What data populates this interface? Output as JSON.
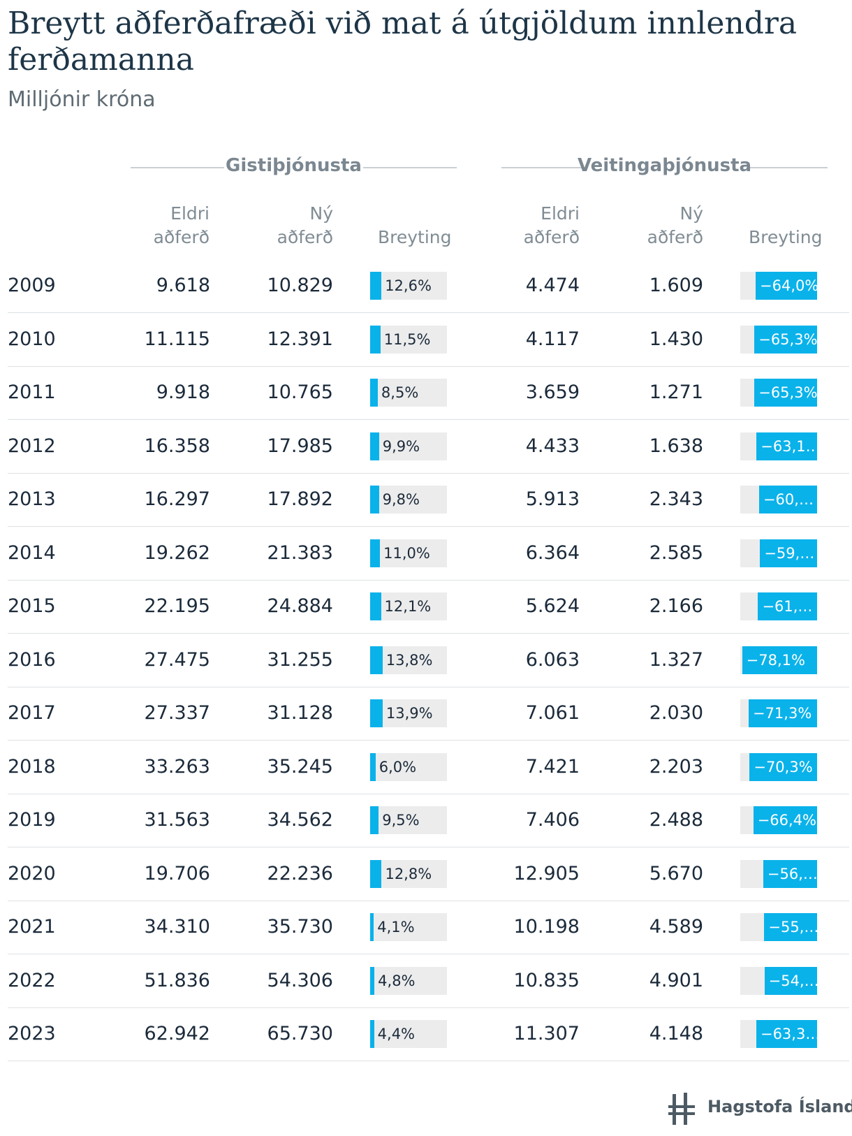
{
  "title": "Breytt aðferðafræði við mat á útgjöldum innlendra ferðamanna",
  "subtitle": "Milljónir króna",
  "groups": {
    "gisti": "Gistiþjónusta",
    "veit": "Veitingaþjónusta"
  },
  "columns": {
    "eldri_line1": "Eldri",
    "eldri_line2": "aðferð",
    "ny_line1": "Ný",
    "ny_line2": "aðferð",
    "breyting": "Breyting"
  },
  "rows": [
    {
      "year": "2009",
      "g_eldri": "9.618",
      "g_ny": "10.829",
      "g_breyting": "12,6%",
      "g_pct": 12.6,
      "v_eldri": "4.474",
      "v_ny": "1.609",
      "v_breyting": "−64,0%",
      "v_pct": -64.0
    },
    {
      "year": "2010",
      "g_eldri": "11.115",
      "g_ny": "12.391",
      "g_breyting": "11,5%",
      "g_pct": 11.5,
      "v_eldri": "4.117",
      "v_ny": "1.430",
      "v_breyting": "−65,3%",
      "v_pct": -65.3
    },
    {
      "year": "2011",
      "g_eldri": "9.918",
      "g_ny": "10.765",
      "g_breyting": "8,5%",
      "g_pct": 8.5,
      "v_eldri": "3.659",
      "v_ny": "1.271",
      "v_breyting": "−65,3%",
      "v_pct": -65.3
    },
    {
      "year": "2012",
      "g_eldri": "16.358",
      "g_ny": "17.985",
      "g_breyting": "9,9%",
      "g_pct": 9.9,
      "v_eldri": "4.433",
      "v_ny": "1.638",
      "v_breyting": "−63,1…",
      "v_pct": -63.1
    },
    {
      "year": "2013",
      "g_eldri": "16.297",
      "g_ny": "17.892",
      "g_breyting": "9,8%",
      "g_pct": 9.8,
      "v_eldri": "5.913",
      "v_ny": "2.343",
      "v_breyting": "−60,…",
      "v_pct": -60.4
    },
    {
      "year": "2014",
      "g_eldri": "19.262",
      "g_ny": "21.383",
      "g_breyting": "11,0%",
      "g_pct": 11.0,
      "v_eldri": "6.364",
      "v_ny": "2.585",
      "v_breyting": "−59,…",
      "v_pct": -59.4
    },
    {
      "year": "2015",
      "g_eldri": "22.195",
      "g_ny": "24.884",
      "g_breyting": "12,1%",
      "g_pct": 12.1,
      "v_eldri": "5.624",
      "v_ny": "2.166",
      "v_breyting": "−61,…",
      "v_pct": -61.5
    },
    {
      "year": "2016",
      "g_eldri": "27.475",
      "g_ny": "31.255",
      "g_breyting": "13,8%",
      "g_pct": 13.8,
      "v_eldri": "6.063",
      "v_ny": "1.327",
      "v_breyting": "−78,1%",
      "v_pct": -78.1
    },
    {
      "year": "2017",
      "g_eldri": "27.337",
      "g_ny": "31.128",
      "g_breyting": "13,9%",
      "g_pct": 13.9,
      "v_eldri": "7.061",
      "v_ny": "2.030",
      "v_breyting": "−71,3%",
      "v_pct": -71.3
    },
    {
      "year": "2018",
      "g_eldri": "33.263",
      "g_ny": "35.245",
      "g_breyting": "6,0%",
      "g_pct": 6.0,
      "v_eldri": "7.421",
      "v_ny": "2.203",
      "v_breyting": "−70,3%",
      "v_pct": -70.3
    },
    {
      "year": "2019",
      "g_eldri": "31.563",
      "g_ny": "34.562",
      "g_breyting": "9,5%",
      "g_pct": 9.5,
      "v_eldri": "7.406",
      "v_ny": "2.488",
      "v_breyting": "−66,4%",
      "v_pct": -66.4
    },
    {
      "year": "2020",
      "g_eldri": "19.706",
      "g_ny": "22.236",
      "g_breyting": "12,8%",
      "g_pct": 12.8,
      "v_eldri": "12.905",
      "v_ny": "5.670",
      "v_breyting": "−56,…",
      "v_pct": -56.1
    },
    {
      "year": "2021",
      "g_eldri": "34.310",
      "g_ny": "35.730",
      "g_breyting": "4,1%",
      "g_pct": 4.1,
      "v_eldri": "10.198",
      "v_ny": "4.589",
      "v_breyting": "−55,…",
      "v_pct": -55.0
    },
    {
      "year": "2022",
      "g_eldri": "51.836",
      "g_ny": "54.306",
      "g_breyting": "4,8%",
      "g_pct": 4.8,
      "v_eldri": "10.835",
      "v_ny": "4.901",
      "v_breyting": "−54,…",
      "v_pct": -54.8
    },
    {
      "year": "2023",
      "g_eldri": "62.942",
      "g_ny": "65.730",
      "g_breyting": "4,4%",
      "g_pct": 4.4,
      "v_eldri": "11.307",
      "v_ny": "4.148",
      "v_breyting": "−63,3…",
      "v_pct": -63.3
    }
  ],
  "logo": {
    "icon": "hagstofa-logo-icon",
    "text": "Hagstofa Íslands"
  },
  "colors": {
    "bar": "#0ab2ea",
    "bar_bg": "#ececec"
  }
}
